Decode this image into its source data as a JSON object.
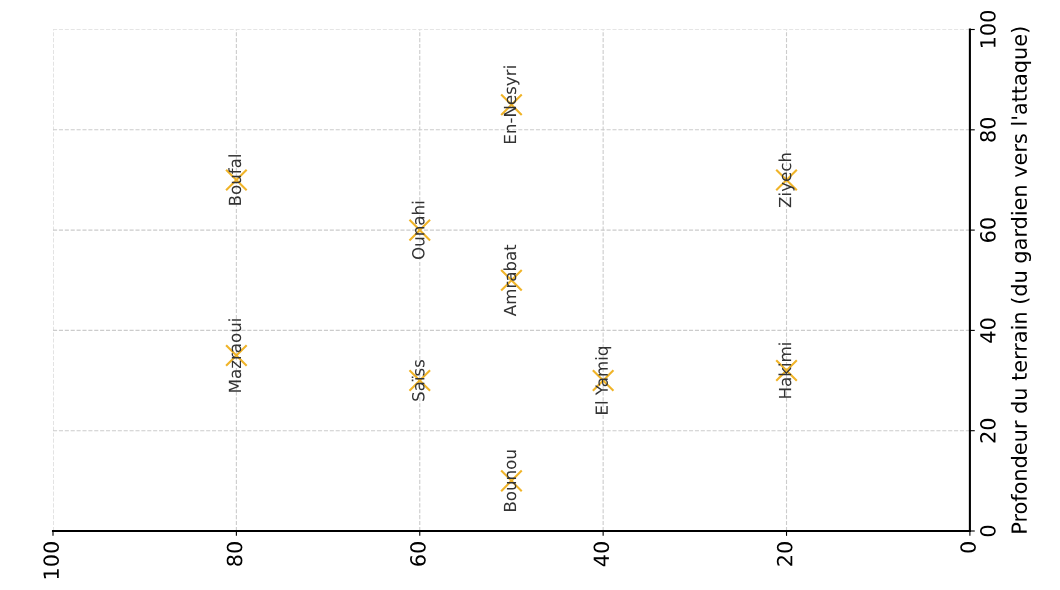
{
  "chart_data": {
    "type": "scatter",
    "ylabel": "Profondeur du terrain (du gardien vers l'attaque)",
    "x": [
      50,
      80,
      60,
      40,
      20,
      50,
      60,
      80,
      20,
      50
    ],
    "series": [
      {
        "color": "#f0b429",
        "values": [
          10,
          35,
          30,
          30,
          32,
          50,
          60,
          70,
          70,
          85
        ]
      }
    ],
    "marker": "cross",
    "annotations": [
      {
        "text": "Bounou",
        "x": 50,
        "y": 10
      },
      {
        "text": "Mazraoui",
        "x": 80,
        "y": 35
      },
      {
        "text": "Saïss",
        "x": 60,
        "y": 30
      },
      {
        "text": "El Yamiq",
        "x": 40,
        "y": 30
      },
      {
        "text": "Hakimi",
        "x": 20,
        "y": 32
      },
      {
        "text": "Amrabat",
        "x": 50,
        "y": 50
      },
      {
        "text": "Ounahi",
        "x": 60,
        "y": 60
      },
      {
        "text": "Boufal",
        "x": 80,
        "y": 70
      },
      {
        "text": "Ziyech",
        "x": 20,
        "y": 70
      },
      {
        "text": "En-Nesyri",
        "x": 50,
        "y": 85
      }
    ],
    "xlim": [
      100,
      0
    ],
    "ylim": [
      0,
      100
    ],
    "xticks": [
      100,
      80,
      60,
      40,
      20,
      0
    ],
    "yticks": [
      0,
      20,
      40,
      60,
      80,
      100
    ],
    "grid": true,
    "legend": false
  }
}
